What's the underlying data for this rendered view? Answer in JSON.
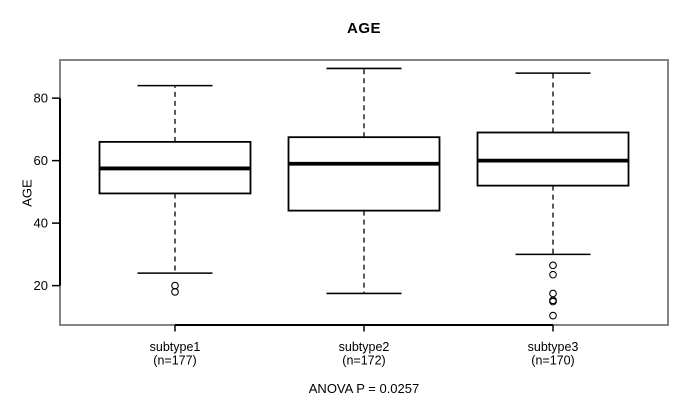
{
  "title": "AGE",
  "footer_annotation": "ANOVA P = 0.0257",
  "colors": {
    "background": "#ffffff",
    "frame": "#848484",
    "ink": "#000000",
    "box_fill": "#ffffff"
  },
  "chart_data": {
    "type": "boxplot",
    "title": "AGE",
    "ylabel": "AGE",
    "xlabel": "",
    "ylim": [
      7.4,
      92.2
    ],
    "yticks": [
      20,
      40,
      60,
      80
    ],
    "grid": false,
    "annotation": "ANOVA P = 0.0257",
    "groups": [
      {
        "label": "subtype1",
        "sublabel": "(n=177)",
        "n": 177,
        "whisker_low": 24,
        "q1": 49.5,
        "median": 57.5,
        "q3": 66,
        "whisker_high": 84,
        "outliers": [
          20,
          18
        ]
      },
      {
        "label": "subtype2",
        "sublabel": "(n=172)",
        "n": 172,
        "whisker_low": 17.5,
        "q1": 44,
        "median": 59,
        "q3": 67.5,
        "whisker_high": 89.5,
        "outliers": []
      },
      {
        "label": "subtype3",
        "sublabel": "(n=170)",
        "n": 170,
        "whisker_low": 30,
        "q1": 52,
        "median": 60,
        "q3": 69,
        "whisker_high": 88,
        "outliers": [
          26.5,
          23.5,
          17.5,
          15.3,
          14.9,
          10.4
        ]
      }
    ]
  }
}
